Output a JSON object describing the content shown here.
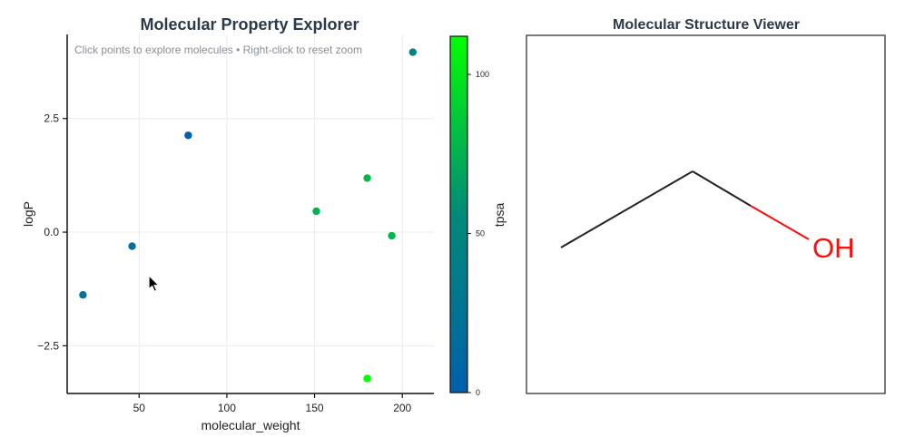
{
  "left_panel": {
    "title": "Molecular Property Explorer",
    "hint": "Click points to explore molecules • Right-click to reset zoom"
  },
  "right_panel": {
    "title": "Molecular Structure Viewer",
    "atom_label": "OH",
    "bond_color": "#222222",
    "heteroatom_color": "#ff0d0d"
  },
  "chart_data": {
    "type": "scatter",
    "title": "Molecular Property Explorer",
    "xlabel": "molecular_weight",
    "ylabel": "logP",
    "xlim": [
      9,
      218
    ],
    "ylim": [
      -3.55,
      4.35
    ],
    "xticks": [
      50,
      100,
      150,
      200
    ],
    "yticks": [
      -2.5,
      0.0,
      2.5
    ],
    "xtick_labels": [
      "50",
      "100",
      "150",
      "200"
    ],
    "ytick_labels": [
      "−2.5",
      "0.0",
      "2.5"
    ],
    "grid": true,
    "points": [
      {
        "x": 18,
        "y": -1.38,
        "c": 25
      },
      {
        "x": 46,
        "y": -0.31,
        "c": 20
      },
      {
        "x": 78,
        "y": 2.13,
        "c": 0
      },
      {
        "x": 151,
        "y": 0.46,
        "c": 75
      },
      {
        "x": 180,
        "y": 1.19,
        "c": 78
      },
      {
        "x": 180,
        "y": -3.22,
        "c": 112
      },
      {
        "x": 194,
        "y": -0.08,
        "c": 78
      },
      {
        "x": 206,
        "y": 3.96,
        "c": 50
      }
    ],
    "colorbar": {
      "label": "tpsa",
      "range": [
        0,
        112
      ],
      "ticks": [
        0,
        50,
        100
      ],
      "tick_labels": [
        "0",
        "50",
        "100"
      ],
      "colormap": [
        "#0060ac",
        "#008a7a",
        "#00ff00"
      ]
    }
  }
}
